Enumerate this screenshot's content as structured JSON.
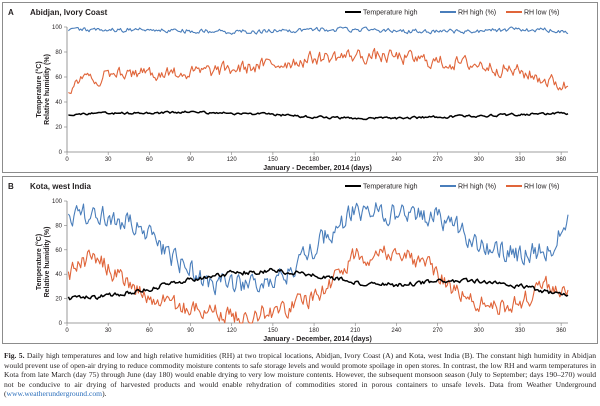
{
  "figure": {
    "caption_label": "Fig. 5.",
    "caption_text": "Daily high temperatures and low and high relative humidities (RH) at two tropical locations, Abidjan, Ivory Coast (A) and Kota, west India (B). The constant high humidity in Abidjan would prevent use of open-air drying to reduce commodity moisture contents to safe storage levels and would promote spoilage in open stores. In contrast, the low RH and warm temperatures in Kota from late March (day 75) through June (day 180) would enable drying to very low moisture contents. However, the subsequent monsoon season (July to September; days 190–270) would not be conducive to air drying of harvested products and would enable rehydration of commodities stored in porous containers to unsafe levels. Data from Weather Underground (",
    "caption_link": "www.weatherunderground.com",
    "caption_end": ")."
  },
  "colors": {
    "temp": "#000000",
    "rh_high": "#4a7ebb",
    "rh_low": "#e0653a",
    "axis": "#7f7f7f"
  },
  "chart_data": [
    {
      "type": "line",
      "panel_letter": "A",
      "title": "Abidjan, Ivory Coast",
      "xlabel": "January - December, 2014 (days)",
      "ylabel_line1": "Temperature (°C)",
      "ylabel_line2": "Relative humidity (%)",
      "xlim": [
        0,
        365
      ],
      "ylim": [
        0,
        100
      ],
      "xticks": [
        0,
        30,
        60,
        90,
        120,
        150,
        180,
        210,
        240,
        270,
        300,
        330,
        360
      ],
      "yticks": [
        0,
        20,
        40,
        60,
        80,
        100
      ],
      "legend": [
        "Temperature high",
        "RH high (%)",
        "RH low (%)"
      ],
      "series": [
        {
          "name": "Temperature high",
          "segments": [
            [
              0,
              30
            ],
            [
              30,
              31
            ],
            [
              60,
              31
            ],
            [
              90,
              32
            ],
            [
              120,
              31
            ],
            [
              150,
              30
            ],
            [
              180,
              28
            ],
            [
              210,
              27
            ],
            [
              240,
              27
            ],
            [
              270,
              28
            ],
            [
              300,
              29
            ],
            [
              330,
              30
            ],
            [
              365,
              31
            ]
          ],
          "amp": 1.5
        },
        {
          "name": "RH high (%)",
          "segments": [
            [
              0,
              98
            ],
            [
              30,
              98
            ],
            [
              60,
              98
            ],
            [
              90,
              97
            ],
            [
              120,
              96
            ],
            [
              150,
              97
            ],
            [
              180,
              98
            ],
            [
              210,
              98
            ],
            [
              240,
              97
            ],
            [
              270,
              96
            ],
            [
              300,
              97
            ],
            [
              330,
              98
            ],
            [
              365,
              97
            ]
          ],
          "amp": 3,
          "max": 100
        },
        {
          "name": "RH low (%)",
          "segments": [
            [
              0,
              52
            ],
            [
              30,
              62
            ],
            [
              60,
              64
            ],
            [
              90,
              63
            ],
            [
              120,
              66
            ],
            [
              150,
              70
            ],
            [
              180,
              75
            ],
            [
              210,
              77
            ],
            [
              240,
              76
            ],
            [
              270,
              72
            ],
            [
              300,
              70
            ],
            [
              330,
              64
            ],
            [
              365,
              52
            ]
          ],
          "amp": 9
        }
      ]
    },
    {
      "type": "line",
      "panel_letter": "B",
      "title": "Kota, west India",
      "xlabel": "January - December, 2014 (days)",
      "ylabel_line1": "Temperature (°C)",
      "ylabel_line2": "Relative humidity (%)",
      "xlim": [
        0,
        365
      ],
      "ylim": [
        0,
        100
      ],
      "xticks": [
        0,
        30,
        60,
        90,
        120,
        150,
        180,
        210,
        240,
        270,
        300,
        330,
        360
      ],
      "yticks": [
        0,
        20,
        40,
        60,
        80,
        100
      ],
      "legend": [
        "Temperature high",
        "RH high (%)",
        "RH low (%)"
      ],
      "series": [
        {
          "name": "Temperature high",
          "segments": [
            [
              0,
              20
            ],
            [
              30,
              22
            ],
            [
              60,
              28
            ],
            [
              90,
              36
            ],
            [
              120,
              41
            ],
            [
              150,
              43
            ],
            [
              180,
              40
            ],
            [
              210,
              33
            ],
            [
              240,
              31
            ],
            [
              270,
              34
            ],
            [
              300,
              34
            ],
            [
              330,
              30
            ],
            [
              365,
              22
            ]
          ],
          "amp": 3
        },
        {
          "name": "RH high (%)",
          "segments": [
            [
              0,
              85
            ],
            [
              20,
              92
            ],
            [
              50,
              80
            ],
            [
              75,
              55
            ],
            [
              100,
              35
            ],
            [
              130,
              30
            ],
            [
              160,
              40
            ],
            [
              190,
              72
            ],
            [
              210,
              92
            ],
            [
              240,
              90
            ],
            [
              270,
              88
            ],
            [
              300,
              65
            ],
            [
              330,
              55
            ],
            [
              350,
              60
            ],
            [
              365,
              80
            ]
          ],
          "amp": 14,
          "max": 100
        },
        {
          "name": "RH low (%)",
          "segments": [
            [
              0,
              40
            ],
            [
              20,
              55
            ],
            [
              45,
              30
            ],
            [
              75,
              15
            ],
            [
              100,
              8
            ],
            [
              130,
              6
            ],
            [
              160,
              12
            ],
            [
              185,
              25
            ],
            [
              210,
              55
            ],
            [
              240,
              60
            ],
            [
              265,
              45
            ],
            [
              290,
              20
            ],
            [
              320,
              12
            ],
            [
              350,
              30
            ],
            [
              365,
              25
            ]
          ],
          "amp": 12
        }
      ]
    }
  ]
}
